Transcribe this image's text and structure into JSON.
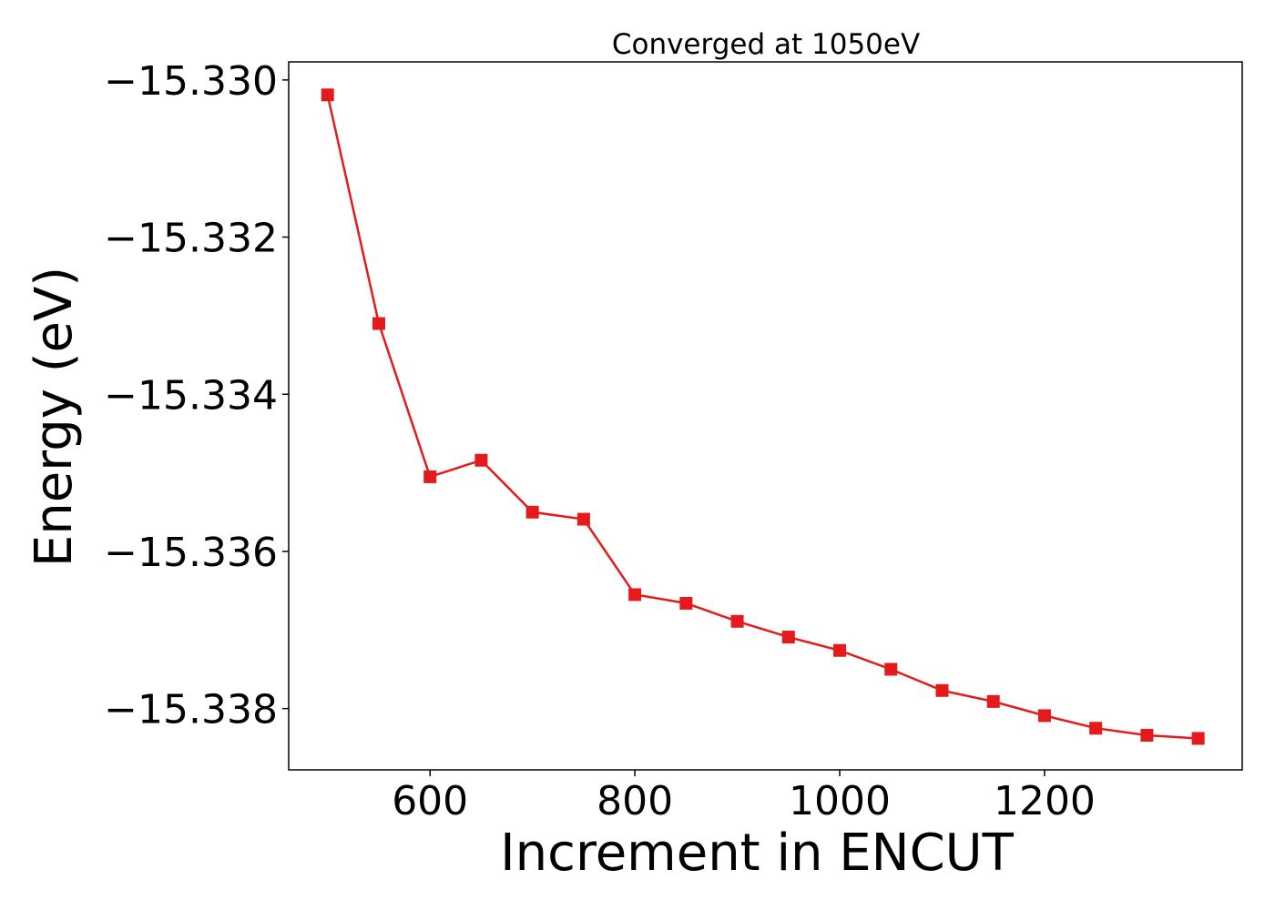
{
  "chart_data": {
    "type": "line",
    "title": "Converged at 1050eV",
    "xlabel": "Increment in ENCUT",
    "ylabel": "Energy (eV)",
    "xlim": [
      462,
      1393
    ],
    "ylim": [
      -15.33878,
      -15.32977
    ],
    "x_ticks": [
      600,
      800,
      1000,
      1200
    ],
    "x_tick_labels": [
      "600",
      "800",
      "1000",
      "1200"
    ],
    "y_ticks": [
      -15.33,
      -15.332,
      -15.334,
      -15.336,
      -15.338
    ],
    "y_tick_labels": [
      "−15.330",
      "−15.332",
      "−15.334",
      "−15.336",
      "−15.338"
    ],
    "grid": false,
    "series": [
      {
        "color": "#e41a1c",
        "marker": "square",
        "x": [
          500,
          550,
          600,
          650,
          700,
          750,
          800,
          850,
          900,
          950,
          1000,
          1050,
          1100,
          1150,
          1200,
          1250,
          1300,
          1350
        ],
        "y": [
          -15.33019,
          -15.3331,
          -15.33505,
          -15.33484,
          -15.3355,
          -15.33559,
          -15.33655,
          -15.33666,
          -15.33689,
          -15.33709,
          -15.33726,
          -15.3375,
          -15.33777,
          -15.33791,
          -15.33809,
          -15.33825,
          -15.33834,
          -15.33838
        ]
      }
    ]
  }
}
